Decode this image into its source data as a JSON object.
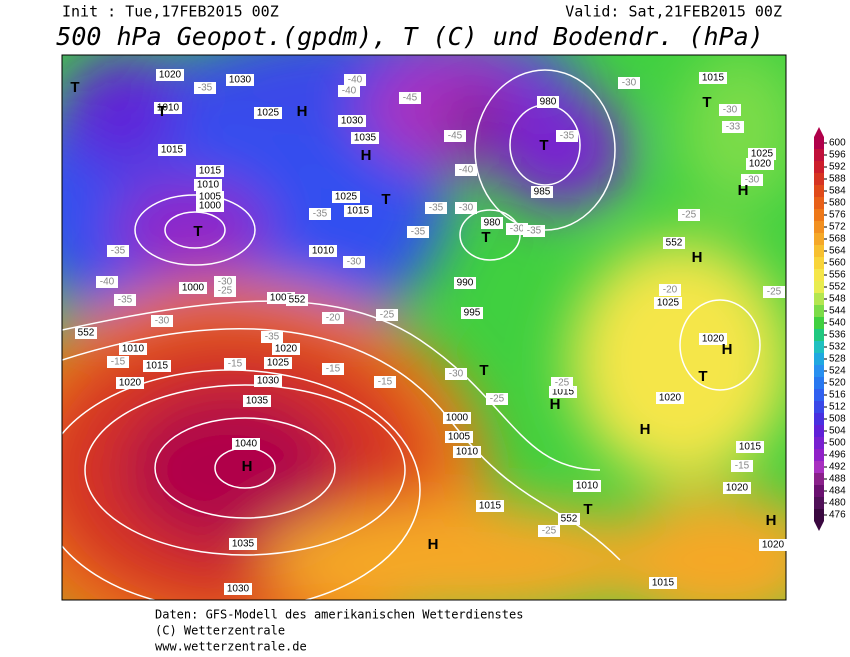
{
  "header": {
    "init": "Init : Tue,17FEB2015 00Z",
    "valid": "Valid: Sat,21FEB2015 00Z",
    "title": "500 hPa Geopot.(gpdm), T (C) und Bodendr. (hPa)"
  },
  "isobar_labels": [
    "1020",
    "1030",
    "1010",
    "1025",
    "1015",
    "1030",
    "1035",
    "1015",
    "1010",
    "1005",
    "1000",
    "1025",
    "1015",
    "1010",
    "1005",
    "1000",
    "1010",
    "1015",
    "1020",
    "1025",
    "1030",
    "1035",
    "1040",
    "1035",
    "1030",
    "1020",
    "980",
    "985",
    "980",
    "990",
    "995",
    "1000",
    "1005",
    "1010",
    "1015",
    "1010",
    "1015",
    "1020",
    "1025",
    "1020",
    "1015",
    "1025",
    "1020",
    "1015",
    "1020",
    "1020",
    "1015"
  ],
  "temperature_labels": [
    "-35",
    "-40",
    "-40",
    "-45",
    "-45",
    "-40",
    "-35",
    "-30",
    "-30",
    "-33",
    "-30",
    "-25",
    "-20",
    "-25",
    "-35",
    "-30",
    "-35",
    "-30",
    "-35",
    "-30",
    "-35",
    "-35",
    "-30",
    "-25",
    "-40",
    "-35",
    "-30",
    "-35",
    "-20",
    "-25",
    "-15",
    "-15",
    "-15",
    "-15",
    "-30",
    "-25",
    "-25",
    "-15",
    "-25"
  ],
  "pressure_centers": [
    "H",
    "H",
    "T",
    "T",
    "T",
    "T",
    "T",
    "T",
    "H",
    "H",
    "H",
    "H",
    "T",
    "T",
    "H",
    "T",
    "H",
    "H",
    "H",
    "T"
  ],
  "contour_552_labels": [
    "552",
    "552",
    "552",
    "552"
  ],
  "colorbar": {
    "ticks": [
      600,
      596,
      592,
      588,
      584,
      580,
      576,
      572,
      568,
      564,
      560,
      556,
      552,
      548,
      544,
      540,
      536,
      532,
      528,
      524,
      520,
      516,
      512,
      508,
      504,
      500,
      496,
      492,
      488,
      484,
      480,
      476
    ],
    "colors": [
      "#b0004a",
      "#c0103a",
      "#cc1e2c",
      "#d63422",
      "#e04a1a",
      "#e86018",
      "#ee7818",
      "#f29020",
      "#f5a828",
      "#f7c030",
      "#f8d43a",
      "#f5e64a",
      "#e8ec50",
      "#b4e650",
      "#7cdc48",
      "#40d040",
      "#20c880",
      "#20c0c0",
      "#20a8e0",
      "#2890f0",
      "#2878f0",
      "#3060f0",
      "#3a48e8",
      "#4830e0",
      "#6020d8",
      "#7820d0",
      "#9020c8",
      "#a830c0",
      "#8a208a",
      "#6a1070",
      "#501058",
      "#3a0840"
    ]
  },
  "footer": {
    "line1": "Daten: GFS-Modell des amerikanischen Wetterdienstes",
    "line2": "(C) Wetterzentrale",
    "line3": "www.wetterzentrale.de"
  }
}
